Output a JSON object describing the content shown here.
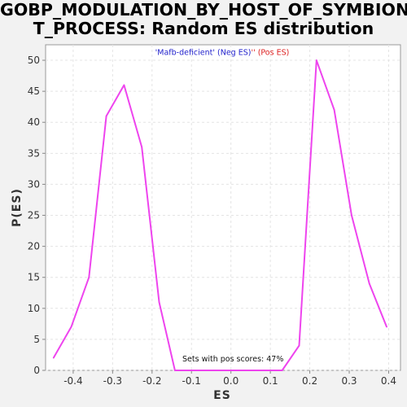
{
  "chart_data": {
    "type": "line",
    "title_lines": [
      "GOBP_MODULATION_BY_HOST_OF_SYMBION",
      "T_PROCESS: Random ES distribution"
    ],
    "xlabel": "ES",
    "ylabel": "P(ES)",
    "xlim": [
      -0.47,
      0.43
    ],
    "ylim": [
      0,
      52.5
    ],
    "xticks": [
      -0.4,
      -0.3,
      -0.2,
      -0.1,
      0.0,
      0.1,
      0.2,
      0.3,
      0.4
    ],
    "xtick_labels": [
      "-0.4",
      "-0.3",
      "-0.2",
      "-0.1",
      "0.0",
      "0.1",
      "0.2",
      "0.3",
      "0.4"
    ],
    "yticks": [
      0,
      5,
      10,
      15,
      20,
      25,
      30,
      35,
      40,
      45,
      50
    ],
    "ytick_labels": [
      "0",
      "5",
      "10",
      "15",
      "20",
      "25",
      "30",
      "35",
      "40",
      "45",
      "50"
    ],
    "grid": true,
    "legend": {
      "placement": "top-center",
      "neg_label": "'Mafb-deficient' (Neg ES)",
      "pos_label": "'' (Pos ES)",
      "neg_color": "#2222cc",
      "pos_color": "#dd2222"
    },
    "annotation": "Sets with pos scores: 47%",
    "series": [
      {
        "color": "#ee44ee",
        "x": [
          -0.45,
          -0.405,
          -0.36,
          -0.316,
          -0.271,
          -0.226,
          -0.182,
          -0.142,
          -0.1,
          -0.05,
          0.0,
          0.05,
          0.1,
          0.13,
          0.173,
          0.217,
          0.262,
          0.306,
          0.351,
          0.395
        ],
        "y": [
          2,
          7,
          15,
          41,
          46,
          36,
          11,
          0,
          0,
          0,
          0,
          0,
          0,
          0,
          4,
          50,
          42,
          25,
          14,
          7
        ]
      }
    ]
  }
}
